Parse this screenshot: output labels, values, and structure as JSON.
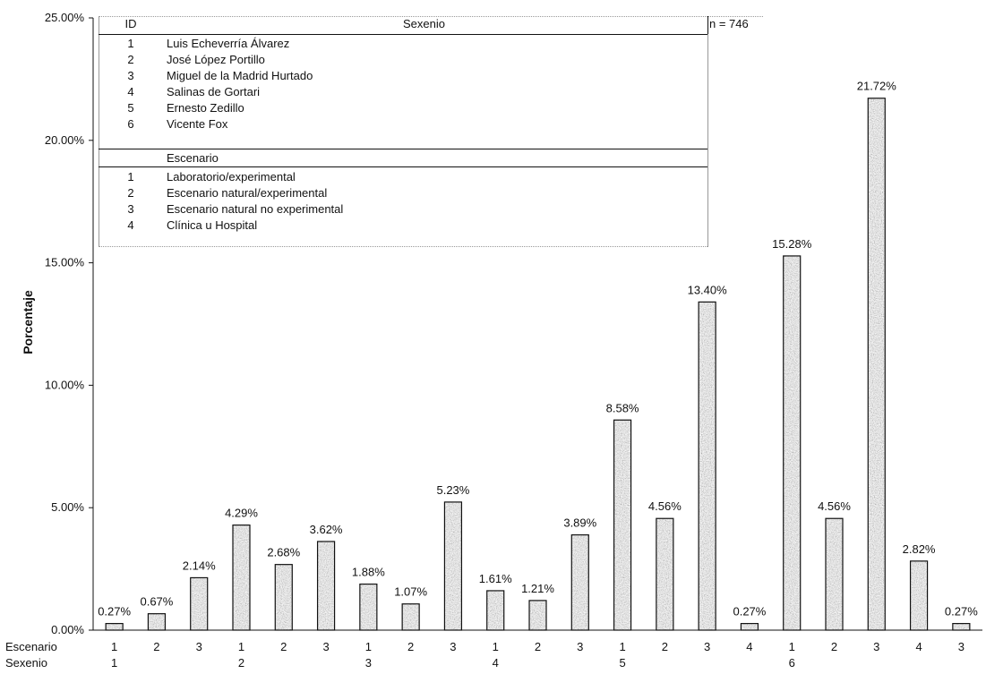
{
  "chart_data": {
    "type": "bar",
    "ylabel": "Porcentaje",
    "ylim": [
      0,
      25
    ],
    "yticks": [
      "0.00%",
      "5.00%",
      "10.00%",
      "15.00%",
      "20.00%",
      "25.00%"
    ],
    "row_labels": {
      "escenario": "Escenario",
      "sexenio": "Sexenio"
    },
    "groups": [
      {
        "sexenio": "1",
        "bars": [
          {
            "escenario": "1",
            "value": 0.27,
            "label": "0.27%"
          },
          {
            "escenario": "2",
            "value": 0.67,
            "label": "0.67%"
          },
          {
            "escenario": "3",
            "value": 2.14,
            "label": "2.14%"
          }
        ]
      },
      {
        "sexenio": "2",
        "bars": [
          {
            "escenario": "1",
            "value": 4.29,
            "label": "4.29%"
          },
          {
            "escenario": "2",
            "value": 2.68,
            "label": "2.68%"
          },
          {
            "escenario": "3",
            "value": 3.62,
            "label": "3.62%"
          }
        ]
      },
      {
        "sexenio": "3",
        "bars": [
          {
            "escenario": "1",
            "value": 1.88,
            "label": "1.88%"
          },
          {
            "escenario": "2",
            "value": 1.07,
            "label": "1.07%"
          },
          {
            "escenario": "3",
            "value": 5.23,
            "label": "5.23%"
          }
        ]
      },
      {
        "sexenio": "4",
        "bars": [
          {
            "escenario": "1",
            "value": 1.61,
            "label": "1.61%"
          },
          {
            "escenario": "2",
            "value": 1.21,
            "label": "1.21%"
          },
          {
            "escenario": "3",
            "value": 3.89,
            "label": "3.89%"
          }
        ]
      },
      {
        "sexenio": "5",
        "bars": [
          {
            "escenario": "1",
            "value": 8.58,
            "label": "8.58%"
          },
          {
            "escenario": "2",
            "value": 4.56,
            "label": "4.56%"
          },
          {
            "escenario": "3",
            "value": 13.4,
            "label": "13.40%"
          },
          {
            "escenario": "4",
            "value": 0.27,
            "label": "0.27%"
          }
        ]
      },
      {
        "sexenio": "6",
        "bars": [
          {
            "escenario": "1",
            "value": 15.28,
            "label": "15.28%"
          },
          {
            "escenario": "2",
            "value": 4.56,
            "label": "4.56%"
          },
          {
            "escenario": "3",
            "value": 21.72,
            "label": "21.72%"
          },
          {
            "escenario": "4",
            "value": 2.82,
            "label": "2.82%"
          },
          {
            "escenario": "3",
            "value": 0.27,
            "label": "0.27%"
          }
        ]
      }
    ],
    "legend_table": {
      "id_header": "ID",
      "sexenio_header": "Sexenio",
      "n_label": "n = 746",
      "sexenios": [
        {
          "id": "1",
          "name": "Luis Echeverría Álvarez"
        },
        {
          "id": "2",
          "name": "José López Portillo"
        },
        {
          "id": "3",
          "name": "Miguel de la Madrid Hurtado"
        },
        {
          "id": "4",
          "name": "Salinas de Gortari"
        },
        {
          "id": "5",
          "name": "Ernesto Zedillo"
        },
        {
          "id": "6",
          "name": "Vicente Fox"
        }
      ],
      "escenario_header": "Escenario",
      "escenarios": [
        {
          "id": "1",
          "name": "Laboratorio/experimental"
        },
        {
          "id": "2",
          "name": "Escenario natural/experimental"
        },
        {
          "id": "3",
          "name": "Escenario natural no experimental"
        },
        {
          "id": "4",
          "name": "Clínica u Hospital"
        }
      ]
    },
    "colors": {
      "bar_fill": "#8a8a8a",
      "bar_stroke": "#111111",
      "axis": "#111111"
    }
  }
}
